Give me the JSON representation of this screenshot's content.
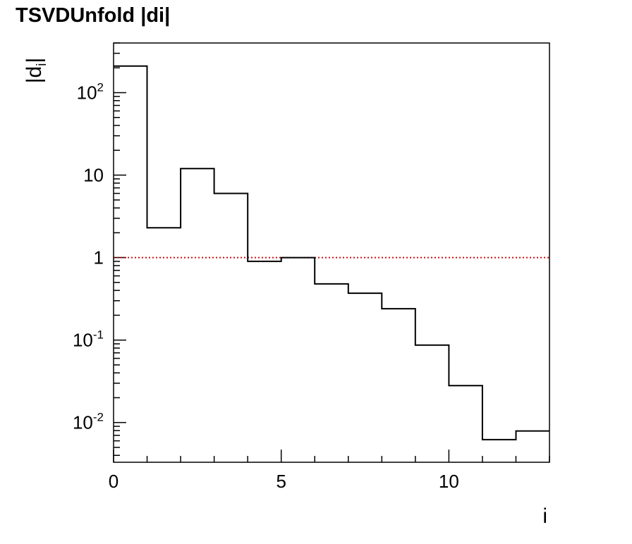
{
  "chart_data": {
    "type": "histogram",
    "title": "TSVDUnfold |di|",
    "xlabel": "i",
    "ylabel_main": "|d",
    "ylabel_sub": "i",
    "ylabel_close": "|",
    "xlim": [
      0,
      13
    ],
    "ylim": [
      0.0033,
      400
    ],
    "y_scale": "log",
    "x_ticks": [
      {
        "value": 0,
        "label": "0"
      },
      {
        "value": 5,
        "label": "5"
      },
      {
        "value": 10,
        "label": "10"
      }
    ],
    "y_ticks": [
      {
        "value": 0.01,
        "base": "10",
        "exp": "-2"
      },
      {
        "value": 0.1,
        "base": "10",
        "exp": "-1"
      },
      {
        "value": 1,
        "base": "1",
        "exp": ""
      },
      {
        "value": 10,
        "base": "10",
        "exp": ""
      },
      {
        "value": 100,
        "base": "10",
        "exp": "2"
      }
    ],
    "bin_edges": [
      0,
      1,
      2,
      3,
      4,
      5,
      6,
      7,
      8,
      9,
      10,
      11,
      12,
      13
    ],
    "values": [
      210,
      2.3,
      12,
      6,
      0.9,
      1.0,
      0.48,
      0.37,
      0.24,
      0.087,
      0.028,
      0.0062,
      0.0079
    ],
    "reference_line": {
      "y": 1,
      "color": "#cc0000",
      "style": "dotted"
    },
    "line_color": "#000000",
    "grid": false
  }
}
